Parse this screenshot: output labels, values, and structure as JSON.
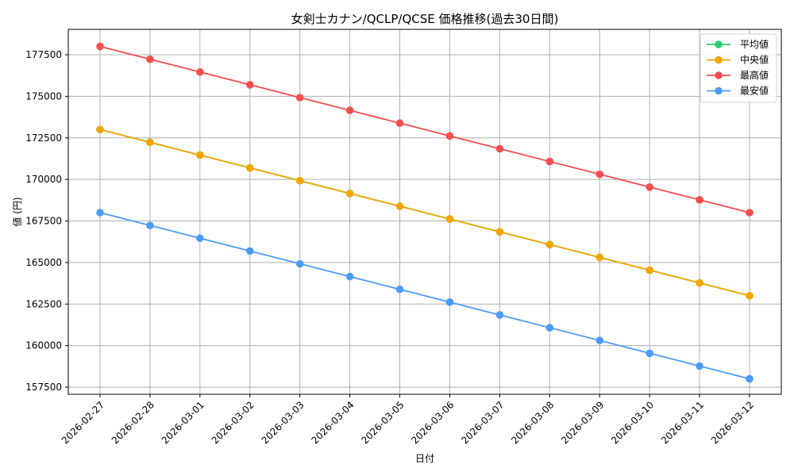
{
  "chart_data": {
    "type": "line",
    "title": "女剣士カナン/QCLP/QCSE 価格推移(過去30日間)",
    "xlabel": "日付",
    "ylabel": "値 (円)",
    "categories": [
      "2026-02-27",
      "2026-02-28",
      "2026-03-01",
      "2026-03-02",
      "2026-03-03",
      "2026-03-04",
      "2026-03-05",
      "2026-03-06",
      "2026-03-07",
      "2026-03-08",
      "2026-03-09",
      "2026-03-10",
      "2026-03-11",
      "2026-03-12"
    ],
    "series": [
      {
        "name": "平均値",
        "color": "#2ecc71",
        "values": [
          173000,
          172231,
          171462,
          170692,
          169923,
          169154,
          168385,
          167615,
          166846,
          166077,
          165308,
          164538,
          163769,
          163000
        ]
      },
      {
        "name": "中央値",
        "color": "#f5a500",
        "values": [
          173000,
          172231,
          171462,
          170692,
          169923,
          169154,
          168385,
          167615,
          166846,
          166077,
          165308,
          164538,
          163769,
          163000
        ]
      },
      {
        "name": "最高値",
        "color": "#f44e4e",
        "values": [
          178000,
          177231,
          176462,
          175692,
          174923,
          174154,
          173385,
          172615,
          171846,
          171077,
          170308,
          169538,
          168769,
          168000
        ]
      },
      {
        "name": "最安値",
        "color": "#4d9bf7",
        "values": [
          168000,
          167231,
          166462,
          165692,
          164923,
          164154,
          163385,
          162615,
          161846,
          161077,
          160308,
          159538,
          158769,
          158000
        ]
      }
    ],
    "yticks": [
      157500,
      160000,
      162500,
      165000,
      167500,
      170000,
      172500,
      175000,
      177500
    ],
    "ylim": [
      157000,
      179000
    ],
    "grid": true,
    "legend_position": "upper right"
  }
}
